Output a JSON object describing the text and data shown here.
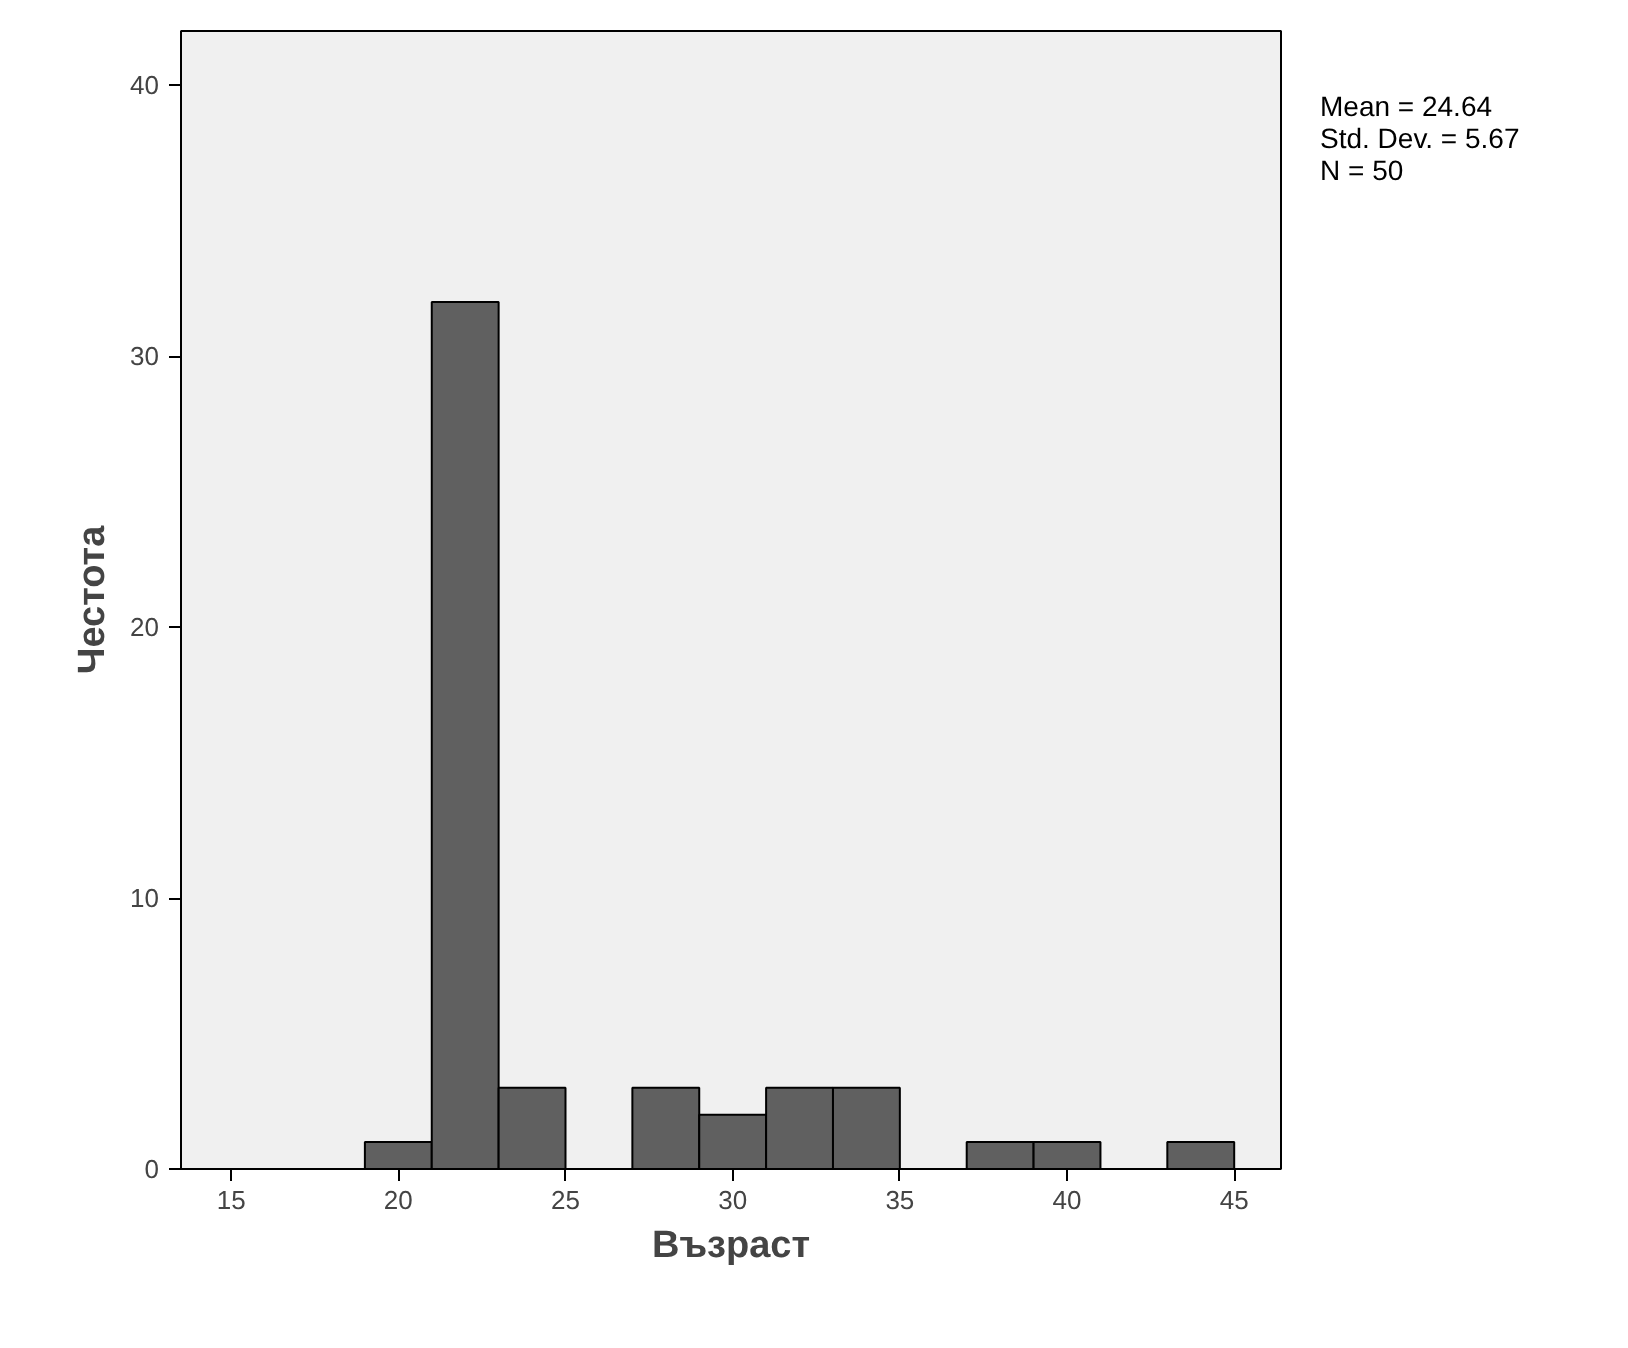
{
  "chart_data": {
    "type": "histogram",
    "xlabel": "Възраст",
    "ylabel": "Честота",
    "bins": [
      19,
      21,
      23,
      25,
      27,
      29,
      31,
      33,
      35,
      37,
      39,
      41,
      43,
      45
    ],
    "values": [
      1,
      32,
      3,
      0,
      3,
      2,
      3,
      3,
      0,
      1,
      1,
      0,
      1
    ],
    "color": "#606060",
    "xlim": [
      13.5,
      46.4
    ],
    "xticks": [
      15,
      20,
      25,
      30,
      35,
      40,
      45
    ],
    "ylim": [
      0,
      42
    ],
    "yticks": [
      0,
      10,
      20,
      30,
      40
    ],
    "grid": false,
    "annotations": [
      "Mean = 24.64",
      "Std. Dev. = 5.67",
      "N = 50"
    ]
  }
}
